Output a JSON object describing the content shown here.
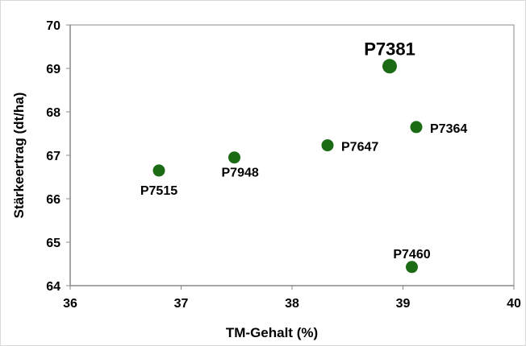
{
  "chart_data": {
    "type": "scatter",
    "title": "",
    "xlabel": "TM-Gehalt (%)",
    "ylabel": "Stärkeertrag (dt/ha)",
    "xlim": [
      36,
      40
    ],
    "ylim": [
      64,
      70
    ],
    "xticks": [
      "36",
      "37",
      "38",
      "39",
      "40"
    ],
    "yticks": [
      "64",
      "65",
      "66",
      "67",
      "68",
      "69",
      "70"
    ],
    "grid": false,
    "legend": "none",
    "marker_color": "#1a6b14",
    "points": [
      {
        "label": "P7381",
        "x": 38.88,
        "y": 69.05,
        "highlight": true
      },
      {
        "label": "P7364",
        "x": 39.12,
        "y": 67.65
      },
      {
        "label": "P7647",
        "x": 38.32,
        "y": 67.23
      },
      {
        "label": "P7948",
        "x": 37.48,
        "y": 66.95
      },
      {
        "label": "P7515",
        "x": 36.8,
        "y": 66.65
      },
      {
        "label": "P7460",
        "x": 39.08,
        "y": 64.43
      }
    ]
  }
}
